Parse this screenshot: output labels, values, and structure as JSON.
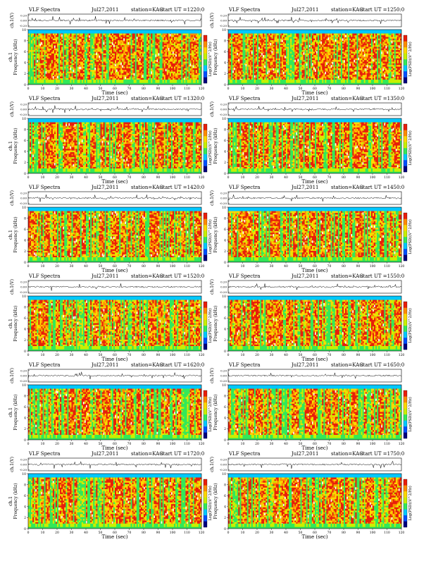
{
  "chart_data": [
    {
      "type": "heatmap",
      "title_left": "VLF Spectra",
      "date": "Jul27,2011",
      "station": "station=KAG",
      "start_label": "start UT =1220:0",
      "top_ylabel": "ch.1(V)",
      "top_yticks": [
        "0.20",
        "0.00",
        "-0.20"
      ],
      "ylabel_line1": "ch.1",
      "ylabel_line2": "Frequency (kHz)",
      "yticks": [
        "0",
        "2",
        "4",
        "6",
        "8",
        "10"
      ],
      "xlabel": "Time (sec)",
      "xticks": [
        "0",
        "10",
        "20",
        "30",
        "40",
        "50",
        "60",
        "70",
        "80",
        "90",
        "100",
        "110",
        "120"
      ],
      "xlim": [
        0,
        120
      ],
      "ylim": [
        0,
        10
      ],
      "colorbar_label": "Log(PSD)(V^2/Hz)",
      "colormap": [
        "#00007f",
        "#0050ff",
        "#00c8ff",
        "#33e85a",
        "#c8f000",
        "#ffd800",
        "#ff8c00",
        "#e81e0a"
      ],
      "intensity": 0.7
    },
    {
      "type": "heatmap",
      "title_left": "VLF Spectra",
      "date": "Jul27,2011",
      "station": "station=KAG",
      "start_label": "start UT =1250:0",
      "top_ylabel": "ch.1(V)",
      "top_yticks": [
        "0.20",
        "0.00",
        "-0.20"
      ],
      "ylabel_line1": "",
      "ylabel_line2": "Frequency (kHz)",
      "yticks": [
        "0",
        "2",
        "4",
        "6",
        "8",
        "10"
      ],
      "xlabel": "Time (sec)",
      "xticks": [
        "0",
        "10",
        "20",
        "30",
        "40",
        "50",
        "60",
        "70",
        "80",
        "90",
        "100",
        "110",
        "120"
      ],
      "xlim": [
        0,
        120
      ],
      "ylim": [
        0,
        10
      ],
      "colorbar_label": "Log(PSD)(V^2/Hz)",
      "colormap": [
        "#00007f",
        "#0050ff",
        "#00c8ff",
        "#33e85a",
        "#c8f000",
        "#ffd800",
        "#ff8c00",
        "#e81e0a"
      ],
      "intensity": 0.72
    },
    {
      "type": "heatmap",
      "title_left": "VLF Spectra",
      "date": "Jul27,2011",
      "station": "station=KAG",
      "start_label": "start UT =1320:0",
      "top_ylabel": "ch.1(V)",
      "top_yticks": [
        "0.20",
        "0.00",
        "-0.20"
      ],
      "ylabel_line1": "ch.1",
      "ylabel_line2": "Frequency (kHz)",
      "yticks": [
        "0",
        "2",
        "4",
        "6",
        "8",
        "10"
      ],
      "xlabel": "Time (sec)",
      "xticks": [
        "0",
        "10",
        "20",
        "30",
        "40",
        "50",
        "60",
        "70",
        "80",
        "90",
        "100",
        "110",
        "120"
      ],
      "xlim": [
        0,
        120
      ],
      "ylim": [
        0,
        10
      ],
      "colorbar_label": "Log(PSD)(V^2/Hz)",
      "colormap": [
        "#00007f",
        "#0050ff",
        "#00c8ff",
        "#33e85a",
        "#c8f000",
        "#ffd800",
        "#ff8c00",
        "#e81e0a"
      ],
      "intensity": 0.66
    },
    {
      "type": "heatmap",
      "title_left": "VLF Spectra",
      "date": "Jul27,2011",
      "station": "station=KAG",
      "start_label": "start UT =1350:0",
      "top_ylabel": "ch.1(V)",
      "top_yticks": [
        "0.20",
        "0.00",
        "-0.20"
      ],
      "ylabel_line1": "",
      "ylabel_line2": "Frequency (kHz)",
      "yticks": [
        "0",
        "2",
        "4",
        "6",
        "8",
        "10"
      ],
      "xlabel": "Time (sec)",
      "xticks": [
        "0",
        "10",
        "20",
        "30",
        "40",
        "50",
        "60",
        "70",
        "80",
        "90",
        "100",
        "110",
        "120"
      ],
      "xlim": [
        0,
        120
      ],
      "ylim": [
        0,
        10
      ],
      "colorbar_label": "Log(PSD)(V^2/Hz)",
      "colormap": [
        "#00007f",
        "#0050ff",
        "#00c8ff",
        "#33e85a",
        "#c8f000",
        "#ffd800",
        "#ff8c00",
        "#e81e0a"
      ],
      "intensity": 0.68
    },
    {
      "type": "heatmap",
      "title_left": "VLF Spectra",
      "date": "Jul27,2011",
      "station": "station=KAG",
      "start_label": "start UT =1420:0",
      "top_ylabel": "ch.1(V)",
      "top_yticks": [
        "0.20",
        "0.00",
        "-0.20"
      ],
      "ylabel_line1": "ch.1",
      "ylabel_line2": "Frequency (kHz)",
      "yticks": [
        "0",
        "2",
        "4",
        "6",
        "8",
        "10"
      ],
      "xlabel": "Time (sec)",
      "xticks": [
        "0",
        "10",
        "20",
        "30",
        "40",
        "50",
        "60",
        "70",
        "80",
        "90",
        "100",
        "110",
        "120"
      ],
      "xlim": [
        0,
        120
      ],
      "ylim": [
        0,
        10
      ],
      "colorbar_label": "Log(PSD)(V^2/Hz)",
      "colormap": [
        "#00007f",
        "#0050ff",
        "#00c8ff",
        "#33e85a",
        "#c8f000",
        "#ffd800",
        "#ff8c00",
        "#e81e0a"
      ],
      "intensity": 0.74
    },
    {
      "type": "heatmap",
      "title_left": "VLF Spectra",
      "date": "Jul27,2011",
      "station": "station=KAG",
      "start_label": "start UT =1450:0",
      "top_ylabel": "ch.1(V)",
      "top_yticks": [
        "0.20",
        "0.00",
        "-0.20"
      ],
      "ylabel_line1": "",
      "ylabel_line2": "Frequency (kHz)",
      "yticks": [
        "0",
        "2",
        "4",
        "6",
        "8",
        "10"
      ],
      "xlabel": "Time (sec)",
      "xticks": [
        "0",
        "10",
        "20",
        "30",
        "40",
        "50",
        "60",
        "70",
        "80",
        "90",
        "100",
        "110",
        "120"
      ],
      "xlim": [
        0,
        120
      ],
      "ylim": [
        0,
        10
      ],
      "colorbar_label": "Log(PSD)(V^2/Hz)",
      "colormap": [
        "#00007f",
        "#0050ff",
        "#00c8ff",
        "#33e85a",
        "#c8f000",
        "#ffd800",
        "#ff8c00",
        "#e81e0a"
      ],
      "intensity": 0.72
    },
    {
      "type": "heatmap",
      "title_left": "VLF Spectra",
      "date": "Jul27,2011",
      "station": "station=KAG",
      "start_label": "start UT =1520:0",
      "top_ylabel": "ch.1(V)",
      "top_yticks": [
        "0.20",
        "0.00",
        "-0.20"
      ],
      "ylabel_line1": "ch.1",
      "ylabel_line2": "Frequency (kHz)",
      "yticks": [
        "0",
        "2",
        "4",
        "6",
        "8",
        "10"
      ],
      "xlabel": "Time (sec)",
      "xticks": [
        "0",
        "10",
        "20",
        "30",
        "40",
        "50",
        "60",
        "70",
        "80",
        "90",
        "100",
        "110",
        "120"
      ],
      "xlim": [
        0,
        120
      ],
      "ylim": [
        0,
        10
      ],
      "colorbar_label": "Log(PSD)(V^2/Hz)",
      "colormap": [
        "#00007f",
        "#0050ff",
        "#00c8ff",
        "#33e85a",
        "#c8f000",
        "#ffd800",
        "#ff8c00",
        "#e81e0a"
      ],
      "intensity": 0.68
    },
    {
      "type": "heatmap",
      "title_left": "VLF Spectra",
      "date": "Jul27,2011",
      "station": "station=KAG",
      "start_label": "start UT =1550:0",
      "top_ylabel": "ch.1(V)",
      "top_yticks": [
        "0.20",
        "0.00",
        "-0.20"
      ],
      "ylabel_line1": "",
      "ylabel_line2": "Frequency (kHz)",
      "yticks": [
        "0",
        "2",
        "4",
        "6",
        "8",
        "10"
      ],
      "xlabel": "Time (sec)",
      "xticks": [
        "0",
        "10",
        "20",
        "30",
        "40",
        "50",
        "60",
        "70",
        "80",
        "90",
        "100",
        "110",
        "120"
      ],
      "xlim": [
        0,
        120
      ],
      "ylim": [
        0,
        10
      ],
      "colorbar_label": "Log(PSD)(V^2/Hz)",
      "colormap": [
        "#00007f",
        "#0050ff",
        "#00c8ff",
        "#33e85a",
        "#c8f000",
        "#ffd800",
        "#ff8c00",
        "#e81e0a"
      ],
      "intensity": 0.64
    },
    {
      "type": "heatmap",
      "title_left": "VLF Spectra",
      "date": "Jul27,2011",
      "station": "station=KAG",
      "start_label": "start UT =1620:0",
      "top_ylabel": "ch.1(V)",
      "top_yticks": [
        "0.20",
        "0.00",
        "-0.20"
      ],
      "ylabel_line1": "ch.1",
      "ylabel_line2": "Frequency (kHz)",
      "yticks": [
        "0",
        "2",
        "4",
        "6",
        "8",
        "10"
      ],
      "xlabel": "Time (sec)",
      "xticks": [
        "0",
        "10",
        "20",
        "30",
        "40",
        "50",
        "60",
        "70",
        "80",
        "90",
        "100",
        "110",
        "120"
      ],
      "xlim": [
        0,
        120
      ],
      "ylim": [
        0,
        10
      ],
      "colorbar_label": "Log(PSD)(V^2/Hz)",
      "colormap": [
        "#00007f",
        "#0050ff",
        "#00c8ff",
        "#33e85a",
        "#c8f000",
        "#ffd800",
        "#ff8c00",
        "#e81e0a"
      ],
      "intensity": 0.6
    },
    {
      "type": "heatmap",
      "title_left": "VLF Spectra",
      "date": "Jul27,2011",
      "station": "station=KAG",
      "start_label": "start UT =1650:0",
      "top_ylabel": "ch.1(V)",
      "top_yticks": [
        "0.20",
        "0.00",
        "-0.20"
      ],
      "ylabel_line1": "",
      "ylabel_line2": "Frequency (kHz)",
      "yticks": [
        "0",
        "2",
        "4",
        "6",
        "8",
        "10"
      ],
      "xlabel": "Time (sec)",
      "xticks": [
        "0",
        "10",
        "20",
        "30",
        "40",
        "50",
        "60",
        "70",
        "80",
        "90",
        "100",
        "110",
        "120"
      ],
      "xlim": [
        0,
        120
      ],
      "ylim": [
        0,
        10
      ],
      "colorbar_label": "Log(PSD)(V^2/Hz)",
      "colormap": [
        "#00007f",
        "#0050ff",
        "#00c8ff",
        "#33e85a",
        "#c8f000",
        "#ffd800",
        "#ff8c00",
        "#e81e0a"
      ],
      "intensity": 0.62
    },
    {
      "type": "heatmap",
      "title_left": "VLF Spectra",
      "date": "Jul27,2011",
      "station": "station=KAG",
      "start_label": "start UT =1720:0",
      "top_ylabel": "ch.1(V)",
      "top_yticks": [
        "0.20",
        "0.00",
        "-0.20"
      ],
      "ylabel_line1": "ch.1",
      "ylabel_line2": "Frequency (kHz)",
      "yticks": [
        "0",
        "2",
        "4",
        "6",
        "8",
        "10"
      ],
      "xlabel": "Time (sec)",
      "xticks": [
        "0",
        "10",
        "20",
        "30",
        "40",
        "50",
        "60",
        "70",
        "80",
        "90",
        "100",
        "110",
        "120"
      ],
      "xlim": [
        0,
        120
      ],
      "ylim": [
        0,
        10
      ],
      "colorbar_label": "Log(PSD)(V^2/Hz)",
      "colormap": [
        "#00007f",
        "#0050ff",
        "#00c8ff",
        "#33e85a",
        "#c8f000",
        "#ffd800",
        "#ff8c00",
        "#e81e0a"
      ],
      "intensity": 0.62
    },
    {
      "type": "heatmap",
      "title_left": "VLF Spectra",
      "date": "Jul27,2011",
      "station": "station=KAG",
      "start_label": "start UT =1750:0",
      "top_ylabel": "ch.1(V)",
      "top_yticks": [
        "0.20",
        "0.00",
        "-0.20"
      ],
      "ylabel_line1": "",
      "ylabel_line2": "Frequency (kHz)",
      "yticks": [
        "0",
        "2",
        "4",
        "6",
        "8",
        "10"
      ],
      "xlabel": "Time (sec)",
      "xticks": [
        "0",
        "10",
        "20",
        "30",
        "40",
        "50",
        "60",
        "70",
        "80",
        "90",
        "100",
        "110",
        "120"
      ],
      "xlim": [
        0,
        120
      ],
      "ylim": [
        0,
        10
      ],
      "colorbar_label": "Log(PSD)(V^2/Hz)",
      "colormap": [
        "#00007f",
        "#0050ff",
        "#00c8ff",
        "#33e85a",
        "#c8f000",
        "#ffd800",
        "#ff8c00",
        "#e81e0a"
      ],
      "intensity": 0.66
    }
  ]
}
